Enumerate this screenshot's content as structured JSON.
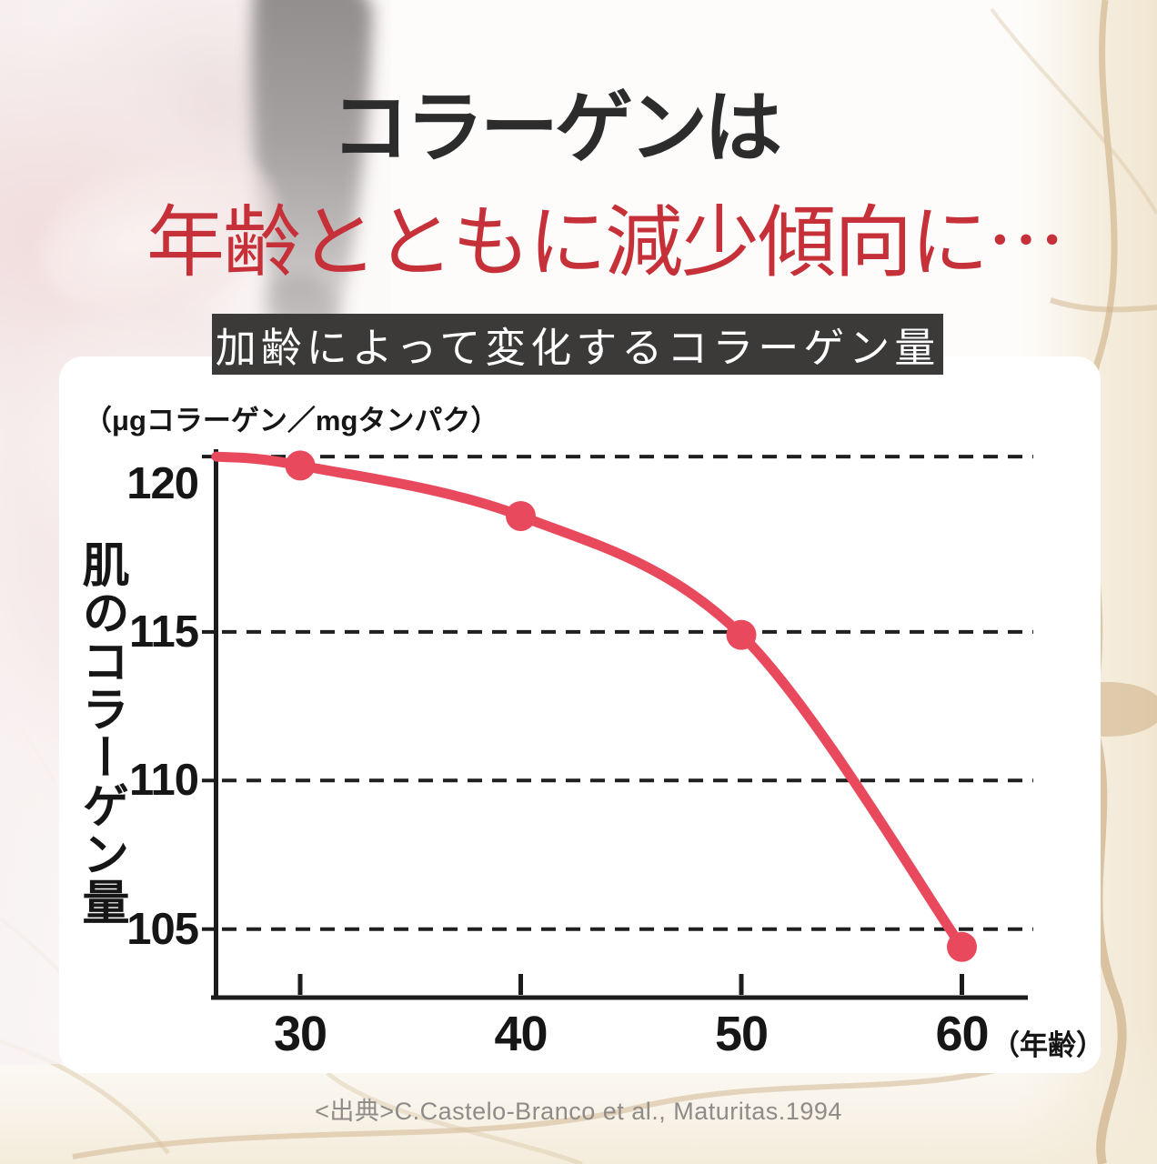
{
  "page": {
    "title_line1": "コラーゲンは",
    "title_line2": "年齢とともに減少傾向に⋯",
    "banner_label": "加齢によって変化するコラーゲン量",
    "source_note": "<出典>C.Castelo-Branco et al., Maturitas.1994"
  },
  "chart_data": {
    "type": "line",
    "title": "加齢によって変化するコラーゲン量",
    "unit_label": "（μgコラーゲン／mgタンパク）",
    "ylabel": "肌のコラーゲン量",
    "xlabel_suffix": "（年齢）",
    "x": [
      30,
      40,
      50,
      60
    ],
    "series": [
      {
        "name": "肌のコラーゲン量",
        "values": [
          120.6,
          118.9,
          114.9,
          104.4
        ]
      }
    ],
    "curve_start": {
      "x": 26.2,
      "value": 120.9
    },
    "x_ticks": [
      "30",
      "40",
      "50",
      "60"
    ],
    "y_ticks": [
      120,
      115,
      110,
      105
    ],
    "grid_values": [
      120.9,
      115,
      110,
      105
    ],
    "xlim": [
      25.9,
      61.7
    ],
    "ylim": [
      102.8,
      121.8
    ],
    "grid": "dashed horizontal",
    "legend_position": "none",
    "line_color": "#e8495c",
    "point_color": "#e8495c"
  },
  "colors": {
    "title_text": "#2d2c2c",
    "accent_red": "#c63039",
    "banner_bg": "#3b3a39",
    "banner_text": "#ffffff",
    "axis": "#1c1c1c",
    "source_text": "#8e8b88",
    "crack_tan": "#c9a97c",
    "panel_bg": "#ffffff"
  }
}
